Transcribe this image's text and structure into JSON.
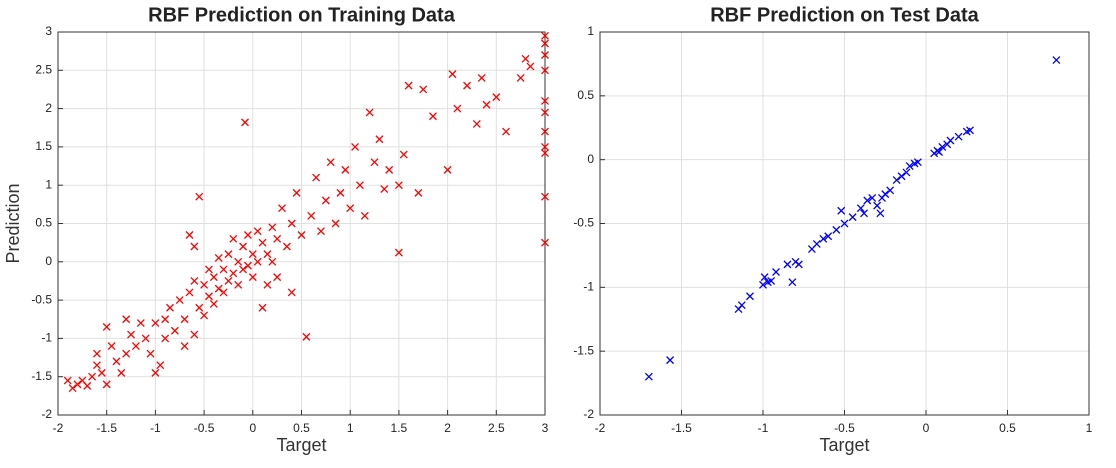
{
  "chart_data": [
    {
      "type": "scatter",
      "title": "RBF Prediction on Training Data",
      "x_label": "Target",
      "y_label": "Prediction",
      "xlim": [
        -2,
        3
      ],
      "ylim": [
        -2,
        3
      ],
      "xticks": [
        -2,
        -1.5,
        -1,
        -0.5,
        0,
        0.5,
        1,
        1.5,
        2,
        2.5,
        3
      ],
      "yticks": [
        -2,
        -1.5,
        -1,
        -0.5,
        0,
        0.5,
        1,
        1.5,
        2,
        2.5,
        3
      ],
      "grid": true,
      "marker": "x",
      "series": [
        {
          "color": "#ff0000",
          "x": [
            -1.9,
            -1.85,
            -1.8,
            -1.75,
            -1.7,
            -1.65,
            -1.6,
            -1.6,
            -1.55,
            -1.5,
            -1.5,
            -1.45,
            -1.4,
            -1.35,
            -1.3,
            -1.3,
            -1.25,
            -1.2,
            -1.15,
            -1.1,
            -1.05,
            -1.0,
            -1.0,
            -0.95,
            -0.9,
            -0.9,
            -0.85,
            -0.8,
            -0.75,
            -0.7,
            -0.7,
            -0.65,
            -0.6,
            -0.6,
            -0.55,
            -0.5,
            -0.5,
            -0.45,
            -0.45,
            -0.4,
            -0.4,
            -0.35,
            -0.35,
            -0.3,
            -0.3,
            -0.25,
            -0.25,
            -0.2,
            -0.2,
            -0.15,
            -0.15,
            -0.1,
            -0.1,
            -0.05,
            -0.05,
            0.0,
            0.0,
            0.05,
            0.05,
            0.1,
            0.1,
            0.15,
            0.15,
            0.2,
            0.2,
            0.25,
            0.25,
            0.3,
            0.35,
            0.4,
            0.4,
            0.45,
            0.5,
            0.55,
            0.6,
            0.65,
            0.7,
            0.75,
            0.8,
            0.85,
            0.9,
            0.95,
            1.0,
            1.05,
            1.1,
            1.15,
            1.2,
            1.25,
            1.3,
            1.35,
            1.4,
            1.5,
            1.5,
            1.55,
            1.6,
            1.7,
            1.75,
            1.85,
            2.0,
            2.05,
            2.1,
            2.2,
            2.3,
            2.35,
            2.4,
            2.5,
            2.6,
            2.75,
            2.8,
            2.85,
            3,
            3,
            3,
            3,
            3,
            3,
            3,
            3,
            3,
            3,
            3,
            -0.55,
            -0.08,
            -0.65,
            -0.6
          ],
          "values": [
            -1.55,
            -1.65,
            -1.6,
            -1.55,
            -1.62,
            -1.5,
            -1.35,
            -1.2,
            -1.45,
            -1.6,
            -0.85,
            -1.1,
            -1.3,
            -1.45,
            -1.2,
            -0.75,
            -0.95,
            -1.1,
            -0.8,
            -1.0,
            -1.2,
            -0.8,
            -1.45,
            -1.35,
            -1.0,
            -0.75,
            -0.6,
            -0.9,
            -0.5,
            -1.1,
            -0.75,
            -0.4,
            -0.95,
            -0.25,
            -0.6,
            -0.3,
            -0.7,
            -0.1,
            -0.45,
            -0.2,
            -0.55,
            0.05,
            -0.35,
            -0.1,
            -0.4,
            0.1,
            -0.25,
            0.3,
            -0.15,
            0.0,
            -0.3,
            0.2,
            -0.1,
            0.35,
            -0.05,
            0.1,
            -0.2,
            0.4,
            0.0,
            0.25,
            -0.6,
            0.1,
            -0.3,
            0.45,
            0.0,
            0.3,
            -0.2,
            0.7,
            0.2,
            0.5,
            -0.4,
            0.9,
            0.35,
            -0.98,
            0.6,
            1.1,
            0.4,
            0.8,
            1.3,
            0.5,
            0.9,
            1.2,
            0.7,
            1.5,
            1.0,
            0.6,
            1.95,
            1.3,
            1.6,
            0.95,
            1.2,
            0.12,
            1.0,
            1.4,
            2.3,
            0.9,
            2.25,
            1.9,
            1.2,
            2.45,
            2.0,
            2.3,
            1.8,
            2.4,
            2.05,
            2.15,
            1.7,
            2.4,
            2.65,
            2.55,
            2.95,
            2.85,
            2.7,
            2.5,
            2.1,
            1.95,
            1.7,
            1.5,
            1.42,
            0.85,
            0.25,
            0.85,
            1.82,
            0.35,
            0.2
          ]
        }
      ]
    },
    {
      "type": "scatter",
      "title": "RBF Prediction on Test Data",
      "x_label": "Target",
      "xlim": [
        -2,
        1
      ],
      "ylim": [
        -2,
        1
      ],
      "xticks": [
        -2,
        -1.5,
        -1,
        -0.5,
        0,
        0.5,
        1
      ],
      "yticks": [
        -2,
        -1.5,
        -1,
        -0.5,
        0,
        0.5,
        1
      ],
      "grid": true,
      "marker": "x",
      "series": [
        {
          "color": "#0000ff",
          "x": [
            -1.7,
            -1.57,
            -1.15,
            -1.13,
            -1.08,
            -1.0,
            -0.99,
            -0.97,
            -0.95,
            -0.92,
            -0.85,
            -0.82,
            -0.8,
            -0.78,
            -0.7,
            -0.67,
            -0.63,
            -0.6,
            -0.55,
            -0.52,
            -0.5,
            -0.45,
            -0.4,
            -0.38,
            -0.36,
            -0.33,
            -0.3,
            -0.28,
            -0.27,
            -0.25,
            -0.22,
            -0.18,
            -0.15,
            -0.12,
            -0.1,
            -0.07,
            -0.05,
            0.05,
            0.07,
            0.1,
            0.15,
            0.2,
            0.25,
            0.27,
            0.8,
            0.13,
            0.08
          ],
          "values": [
            -1.7,
            -1.57,
            -1.17,
            -1.14,
            -1.07,
            -0.98,
            -0.92,
            -0.96,
            -0.95,
            -0.88,
            -0.82,
            -0.96,
            -0.8,
            -0.82,
            -0.7,
            -0.66,
            -0.62,
            -0.6,
            -0.55,
            -0.4,
            -0.5,
            -0.45,
            -0.38,
            -0.42,
            -0.32,
            -0.3,
            -0.36,
            -0.42,
            -0.3,
            -0.27,
            -0.24,
            -0.16,
            -0.13,
            -0.1,
            -0.05,
            -0.03,
            -0.02,
            0.05,
            0.07,
            0.1,
            0.15,
            0.18,
            0.22,
            0.23,
            0.78,
            0.12,
            0.06
          ]
        }
      ]
    }
  ]
}
